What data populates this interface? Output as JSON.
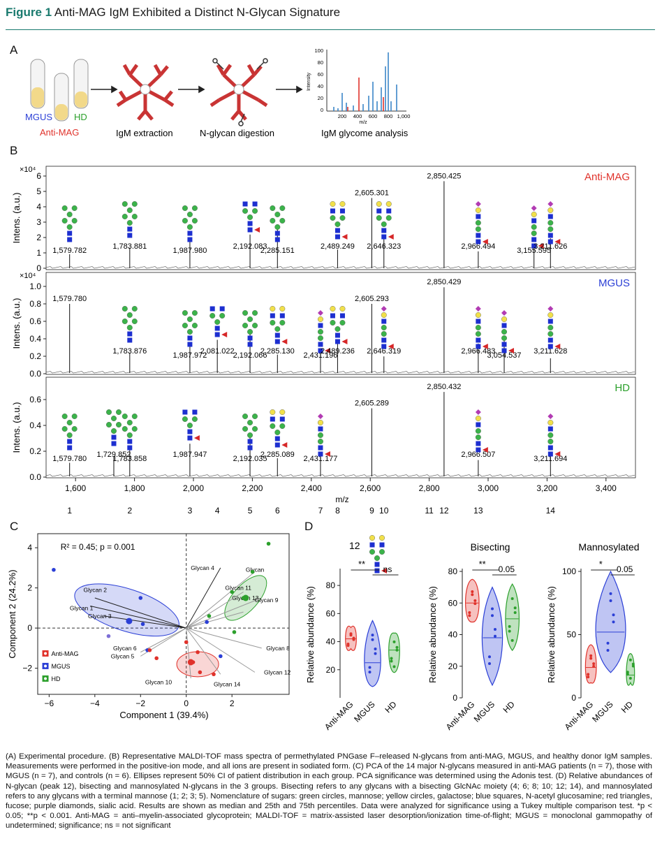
{
  "figure": {
    "number_label": "Figure 1",
    "title": "Anti-MAG IgM Exhibited a Distinct N-Glycan Signature"
  },
  "panelA": {
    "label": "A",
    "tubes": {
      "mgus": "MGUS",
      "hd": "HD",
      "antimag": "Anti-MAG"
    },
    "steps": [
      "IgM extraction",
      "N-glycan digestion",
      "IgM glycome analysis"
    ],
    "mini_chart": {
      "yaxis_label": "Intensity",
      "xaxis_label": "m/z",
      "yticks": [
        "100",
        "80",
        "60",
        "40",
        "20",
        "0"
      ],
      "xticks": [
        "200",
        "400",
        "600",
        "800",
        "1,000"
      ]
    }
  },
  "panelB": {
    "label": "B",
    "ylabel": "Intens. (a.u.)",
    "xlabel": "m/z",
    "xticks": [
      "1,600",
      "1,800",
      "2,000",
      "2,200",
      "2,400",
      "2,600",
      "2,800",
      "3,000",
      "3,200",
      "3,400"
    ],
    "glycan_numbers": [
      "1",
      "2",
      "3",
      "4",
      "5",
      "6",
      "7",
      "8",
      "9",
      "10",
      "11",
      "12",
      "13",
      "14"
    ],
    "spectra": [
      {
        "name": "Anti-MAG",
        "color": "#e0322b",
        "scale": "×10⁴",
        "yticks": [
          "6",
          "5",
          "4",
          "3",
          "2",
          "1",
          "0"
        ],
        "peaks": [
          "1,579.782",
          "1,783.881",
          "1,987.980",
          "2,192.083",
          "2,285.151",
          "2,489.249",
          "2,605.301",
          "2,646.323",
          "2,850.425",
          "2,966.494",
          "3,155.595",
          "3,211.626"
        ]
      },
      {
        "name": "MGUS",
        "color": "#2b3fd6",
        "scale": "×10⁴",
        "yticks": [
          "1.0",
          "0.8",
          "0.6",
          "0.4",
          "0.2",
          "0.0"
        ],
        "peaks": [
          "1,579.780",
          "1,783.876",
          "1,987.972",
          "2,081.022",
          "2,192.066",
          "2,285.130",
          "2,431.196",
          "2,489.236",
          "2,605.293",
          "2,646.319",
          "2,850.429",
          "2,966.483",
          "3,054.537",
          "3,211.628"
        ]
      },
      {
        "name": "HD",
        "color": "#2ca02c",
        "scale": "",
        "yticks": [
          "0.6",
          "0.4",
          "0.2",
          "0.0"
        ],
        "peaks": [
          "1,579.780",
          "1,729.852",
          "1,783.858",
          "1,987.947",
          "2,192.035",
          "2,285.089",
          "2,431.177",
          "2,605.289",
          "2,850.432",
          "2,966.507",
          "3,211.694"
        ]
      }
    ]
  },
  "panelC": {
    "label": "C",
    "stat": "R² = 0.45; p = 0.001",
    "xlabel": "Component 1 (39.4%)",
    "ylabel": "Component 2 (24.2%)",
    "xticks": [
      "−6",
      "−4",
      "−2",
      "0",
      "2"
    ],
    "yticks": [
      "4",
      "2",
      "0",
      "−2"
    ],
    "legend": [
      {
        "name": "Anti-MAG",
        "color": "#e0322b"
      },
      {
        "name": "MGUS",
        "color": "#2b3fd6"
      },
      {
        "name": "HD",
        "color": "#2ca02c"
      }
    ],
    "vector_labels": [
      "Glycan 4",
      "Glycan 2",
      "Glycan 1",
      "Glycan 3",
      "Glycan 6",
      "Glycan 5",
      "Glycan 10",
      "Glycan 14",
      "Glycan 12",
      "Glycan 8",
      "Glycan 13",
      "Glycan 9",
      "Glycan 11",
      "Glycan"
    ]
  },
  "panelD": {
    "label": "D",
    "ylabel": "Relative abundance (%)",
    "groups": [
      "Anti-MAG",
      "MGUS",
      "HD"
    ],
    "plots": [
      {
        "title": "12",
        "yticks": [
          "80",
          "60",
          "40",
          "20"
        ],
        "sig1": "**",
        "sig2": "ns"
      },
      {
        "title": "Bisecting",
        "yticks": [
          "80",
          "60",
          "40",
          "20",
          "0"
        ],
        "sig1": "**",
        "sig2": "0.05"
      },
      {
        "title": "Mannosylated",
        "yticks": [
          "100",
          "50",
          "0"
        ],
        "sig1": "*",
        "sig2": "0.05"
      }
    ]
  },
  "caption": "(A) Experimental procedure. (B) Representative MALDI-TOF mass spectra of permethylated PNGase F–released N-glycans from anti-MAG, MGUS, and healthy donor IgM samples. Measurements were performed in the positive-ion mode, and all ions are present in sodiated form. (C) PCA of the 14 major N-glycans measured in anti-MAG patients (n = 7), those with MGUS (n = 7), and controls (n = 6). Ellipses represent 50% CI of patient distribution in each group. PCA significance was determined using the Adonis test. (D) Relative abundances of N-glycan (peak 12), bisecting and mannosylated N-glycans in the 3 groups. Bisecting refers to any glycans with a bisecting GlcNAc moiety (4; 6; 8; 10; 12; 14), and mannosylated refers to any glycans with a terminal mannose (1; 2; 3; 5). Nomenclature of sugars: green circles, mannose; yellow circles, galactose; blue squares, N-acetyl glucosamine; red triangles, fucose; purple diamonds, sialic acid. Results are shown as median and 25th and 75th percentiles. Data were analyzed for significance using a Tukey multiple comparison test. *p < 0.05; **p < 0.001. Anti-MAG = anti–myelin-associated glycoprotein; MALDI-TOF = matrix-assisted laser desorption/ionization time-of-flight; MGUS = monoclonal gammopathy of undetermined; significance; ns = not significant"
}
